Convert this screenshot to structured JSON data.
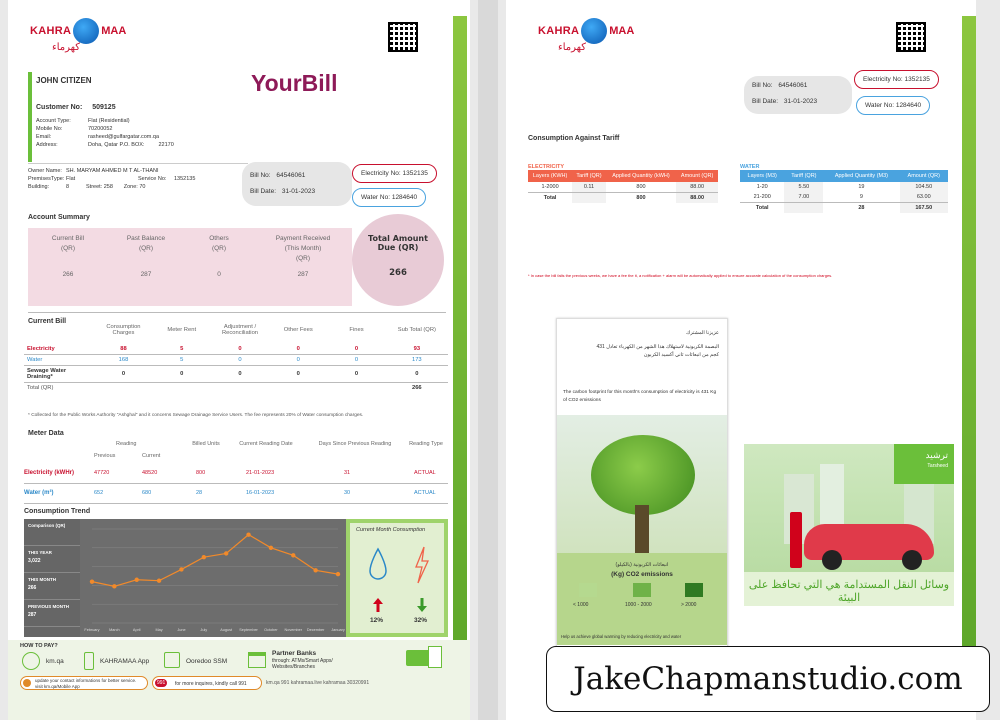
{
  "brand": {
    "name_left": "KAHRA",
    "name_right": "MAA",
    "arabic": "كهرماء"
  },
  "page1": {
    "customer_name": "JOHN CITIZEN",
    "bill_title": "YourBill",
    "customer_no_label": "Customer No:",
    "customer_no": "509125",
    "account_type_label": "Account Type:",
    "account_type": "Flat (Residential)",
    "mobile_label": "Mobile No:",
    "mobile": "70200052",
    "email_label": "Email:",
    "email": "rasheed@gulfargatar.com.qa",
    "address_label": "Address:",
    "address": "Doha, Qatar P.O. BOX:",
    "po_box": "22170",
    "owner_label": "Owner Name:",
    "owner": "SH. MARYAM AHMED M T AL-THANI",
    "premises_label": "PremisesType:",
    "premises": "Flat",
    "service_label": "Service No:",
    "service_no": "1352135",
    "building_label": "Building:",
    "building": "8",
    "street_label": "Street:",
    "street": "258",
    "zone_label": "Zone:",
    "zone": "70",
    "bill_no_label": "Bill No:",
    "bill_no": "64546061",
    "bill_date_label": "Bill Date:",
    "bill_date": "31-01-2023",
    "electricity_no_label": "Electricity No:",
    "electricity_no": "1352135",
    "water_no_label": "Water No:",
    "water_no": "1284640",
    "account_summary_title": "Account Summary",
    "summary": [
      {
        "label1": "Current Bill",
        "label2": "(QR)",
        "label3": "",
        "value": "266"
      },
      {
        "label1": "Past Balance",
        "label2": "(QR)",
        "label3": "",
        "value": "287"
      },
      {
        "label1": "Others",
        "label2": "(QR)",
        "label3": "",
        "value": "0"
      },
      {
        "label1": "Payment Received",
        "label2": "(This Month)",
        "label3": "(QR)",
        "value": "287"
      }
    ],
    "total_due_label1": "Total Amount",
    "total_due_label2": "Due (QR)",
    "total_due_value": "266",
    "current_bill_title": "Current Bill",
    "current_bill_headers": [
      "Consumption Charges",
      "Meter Rent",
      "Adjustment / Reconciliation",
      "Other Fees",
      "Fines",
      "Sub Total (QR)"
    ],
    "current_bill_rows": [
      {
        "label": "Electricity",
        "values": [
          "88",
          "5",
          "0",
          "0",
          "0",
          "93"
        ]
      },
      {
        "label": "Water",
        "values": [
          "168",
          "5",
          "0",
          "0",
          "0",
          "173"
        ]
      },
      {
        "label": "Sewage Water Draining*",
        "values": [
          "0",
          "0",
          "0",
          "0",
          "0",
          "0"
        ]
      }
    ],
    "total_label": "Total (QR)",
    "total_value": "266",
    "footnote": "* Collected for the Public Works Authority \"Ashghal\" and it concerns Sewage Drainage Service Users. The fee represents 20% of Water consumption charges.",
    "meter_title": "Meter Data",
    "meter_headers": {
      "reading": "Reading",
      "previous": "Previous",
      "current": "Current",
      "billed": "Billed Units",
      "current_date": "Current Reading Date",
      "days": "Days Since Previous Reading",
      "type": "Reading Type"
    },
    "meter_rows": [
      {
        "label": "Electricity (kWHr)",
        "previous": "47720",
        "current": "48520",
        "billed": "800",
        "date": "21-01-2023",
        "days": "31",
        "type": "ACTUAL"
      },
      {
        "label": "Water (m³)",
        "previous": "652",
        "current": "680",
        "billed": "28",
        "date": "16-01-2023",
        "days": "30",
        "type": "ACTUAL"
      }
    ],
    "trend_title": "Consumption Trend",
    "trend_legend": [
      {
        "title": "Comparison (QR)",
        "value": ""
      },
      {
        "title": "THIS YEAR",
        "value": "3,022"
      },
      {
        "title": "THIS MONTH",
        "value": "266"
      },
      {
        "title": "PREVIOUS MONTH",
        "value": "287"
      }
    ],
    "trend_months": [
      "February",
      "March",
      "April",
      "May",
      "June",
      "July",
      "August",
      "September",
      "October",
      "November",
      "December",
      "January"
    ],
    "trend_values": [
      220,
      195,
      230,
      225,
      285,
      350,
      370,
      470,
      400,
      360,
      280,
      260
    ],
    "current_month_title": "Current Month Consumption",
    "water_pct": "12%",
    "elec_pct": "32%",
    "how_to_pay": "HOW TO PAY?",
    "pay_options": [
      "km.qa",
      "KAHRAMAA App",
      "Ooredoo SSM"
    ],
    "partner_banks": "Partner Banks",
    "partner_banks_sub": "through: ATMs/Smart Apps/ Websites/Branches",
    "update_text": "update your contact informations for better service. visit km.qa/Mobile App",
    "inquiry_badge": "991",
    "inquiry_text": "for more inquires, kindly call 991",
    "social_text": "km.qa  991  kahramaa.live  kahramaa  30320991"
  },
  "page2": {
    "bill_no_label": "Bill No:",
    "bill_no": "64546061",
    "bill_date_label": "Bill Date:",
    "bill_date": "31-01-2023",
    "electricity_no_label": "Electricity No:",
    "electricity_no": "1352135",
    "water_no_label": "Water No:",
    "water_no": "1284640",
    "tariff_title": "Consumption Against Tariff",
    "electricity": {
      "title": "ELECTRICITY",
      "headers": [
        "Layers (KWH)",
        "Tariff (QR)",
        "Applied Quantity (kWH)",
        "Amount (QR)"
      ],
      "rows": [
        [
          "1-2000",
          "0.11",
          "800",
          "88.00"
        ]
      ],
      "total": [
        "Total",
        "",
        "800",
        "88.00"
      ]
    },
    "water": {
      "title": "WATER",
      "headers": [
        "Layers (M3)",
        "Tariff (QR)",
        "Applied Quantity (M3)",
        "Amount (QR)"
      ],
      "rows": [
        [
          "1-20",
          "5.50",
          "19",
          "104.50"
        ],
        [
          "21-200",
          "7.00",
          "9",
          "63.00"
        ]
      ],
      "total": [
        "Total",
        "",
        "28",
        "167.50"
      ]
    },
    "tariff_note": "* In case the bill falls the previous weeks, we have a fee the it, a notification + alarm will be automatically applied to ensure accurate calculation of the consumption charges.",
    "ad1_arabic_title": "عزيزنا المشترك",
    "ad1_arabic_body": "البصمة الكربونية لاستهلاك هذا الشهر من الكهرباء تعادل 431 كجم من انبعاثات ثاني أكسيد الكربون",
    "ad1_en": "The carbon footprint for this month's consumption of electricity is 431 Kg of CO2 emissions",
    "ad1_ar_label": "انبعاثات الكربونية (بالكيلو)",
    "ad1_emissions": "(Kg) CO2 emissions",
    "ad1_levels": [
      "< 1000",
      "1000 - 2000",
      "> 2000"
    ],
    "ad1_footer": "Help us achieve global warming by reducing electricity and water",
    "ad2_brand": "ترشيد",
    "ad2_brand_en": "Tarsheed",
    "ad2_slogan": "وسائل النقل المستدامة هي التي تحافظ على البيئة",
    "colors": {
      "accent_red": "#c8102e",
      "tariff_red": "#f0634a",
      "tariff_blue": "#4aa3df",
      "green": "#6bbf3a"
    }
  },
  "watermark": "JakeChapmanstudio.com"
}
